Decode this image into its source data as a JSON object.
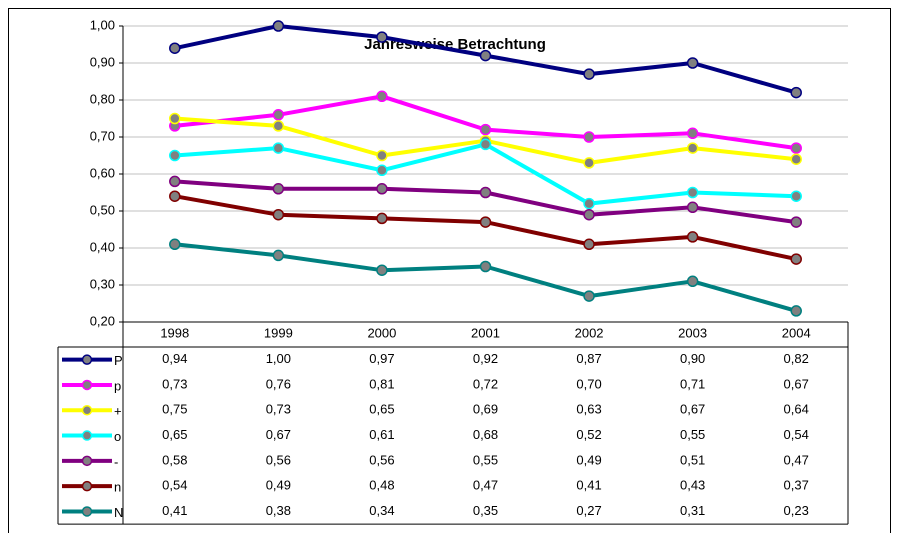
{
  "chart_data": {
    "type": "line",
    "title": "Jahresweise Betrachtung",
    "categories": [
      "1998",
      "1999",
      "2000",
      "2001",
      "2002",
      "2003",
      "2004"
    ],
    "ylim": [
      0.2,
      1.0
    ],
    "yticks": [
      {
        "value": 0.2,
        "label": "0,20"
      },
      {
        "value": 0.3,
        "label": "0,30"
      },
      {
        "value": 0.4,
        "label": "0,40"
      },
      {
        "value": 0.5,
        "label": "0,50"
      },
      {
        "value": 0.6,
        "label": "0,60"
      },
      {
        "value": 0.7,
        "label": "0,70"
      },
      {
        "value": 0.8,
        "label": "0,80"
      },
      {
        "value": 0.9,
        "label": "0,90"
      },
      {
        "value": 1.0,
        "label": "1,00"
      }
    ],
    "grid": true,
    "marker_color": "#808080",
    "series": [
      {
        "name": "P",
        "color": "#000080",
        "values": [
          0.94,
          1.0,
          0.97,
          0.92,
          0.87,
          0.9,
          0.82
        ],
        "value_labels": [
          "0,94",
          "1,00",
          "0,97",
          "0,92",
          "0,87",
          "0,90",
          "0,82"
        ]
      },
      {
        "name": "p",
        "color": "#ff00ff",
        "values": [
          0.73,
          0.76,
          0.81,
          0.72,
          0.7,
          0.71,
          0.67
        ],
        "value_labels": [
          "0,73",
          "0,76",
          "0,81",
          "0,72",
          "0,70",
          "0,71",
          "0,67"
        ]
      },
      {
        "name": "+",
        "color": "#ffff00",
        "values": [
          0.75,
          0.73,
          0.65,
          0.69,
          0.63,
          0.67,
          0.64
        ],
        "value_labels": [
          "0,75",
          "0,73",
          "0,65",
          "0,69",
          "0,63",
          "0,67",
          "0,64"
        ]
      },
      {
        "name": "o",
        "color": "#00ffff",
        "values": [
          0.65,
          0.67,
          0.61,
          0.68,
          0.52,
          0.55,
          0.54
        ],
        "value_labels": [
          "0,65",
          "0,67",
          "0,61",
          "0,68",
          "0,52",
          "0,55",
          "0,54"
        ]
      },
      {
        "name": "-",
        "color": "#800080",
        "values": [
          0.58,
          0.56,
          0.56,
          0.55,
          0.49,
          0.51,
          0.47
        ],
        "value_labels": [
          "0,58",
          "0,56",
          "0,56",
          "0,55",
          "0,49",
          "0,51",
          "0,47"
        ]
      },
      {
        "name": "n",
        "color": "#800000",
        "values": [
          0.54,
          0.49,
          0.48,
          0.47,
          0.41,
          0.43,
          0.37
        ],
        "value_labels": [
          "0,54",
          "0,49",
          "0,48",
          "0,47",
          "0,41",
          "0,43",
          "0,37"
        ]
      },
      {
        "name": "N",
        "color": "#008080",
        "values": [
          0.41,
          0.38,
          0.34,
          0.35,
          0.27,
          0.31,
          0.23
        ],
        "value_labels": [
          "0,41",
          "0,38",
          "0,34",
          "0,35",
          "0,27",
          "0,31",
          "0,23"
        ]
      }
    ]
  }
}
